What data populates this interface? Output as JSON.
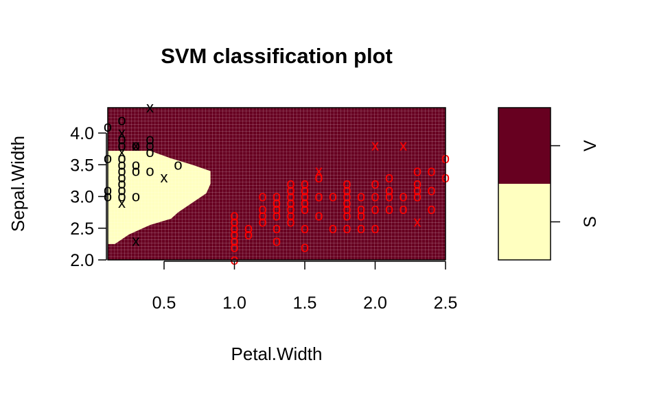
{
  "chart_data": {
    "type": "scatter",
    "title": "SVM classification plot",
    "xlabel": "Petal.Width",
    "ylabel": "Sepal.Width",
    "xlim": [
      0.1,
      2.5
    ],
    "ylim": [
      2.0,
      4.4
    ],
    "x_ticks": [
      "0.5",
      "1.0",
      "1.5",
      "2.0",
      "2.5"
    ],
    "y_ticks": [
      "2.0",
      "2.5",
      "3.0",
      "3.5",
      "4.0"
    ],
    "grid": true,
    "regions": {
      "S": {
        "color": "#ffffc0",
        "boundary": [
          [
            0.1,
            2.25
          ],
          [
            0.15,
            2.25
          ],
          [
            0.25,
            2.4
          ],
          [
            0.4,
            2.55
          ],
          [
            0.55,
            2.65
          ],
          [
            0.6,
            2.75
          ],
          [
            0.7,
            2.9
          ],
          [
            0.8,
            3.05
          ],
          [
            0.83,
            3.2
          ],
          [
            0.83,
            3.4
          ],
          [
            0.7,
            3.5
          ],
          [
            0.55,
            3.6
          ],
          [
            0.4,
            3.72
          ],
          [
            0.1,
            3.72
          ]
        ]
      },
      "V": {
        "color": "#670020"
      }
    },
    "legend": {
      "placement": "right",
      "entries": [
        "V",
        "S"
      ],
      "colors": [
        "#670020",
        "#ffffc0"
      ]
    },
    "series": [
      {
        "class": "S",
        "color": "#000000",
        "points": [
          [
            0.1,
            4.1,
            "o"
          ],
          [
            0.2,
            4.2,
            "o"
          ],
          [
            0.2,
            4.0,
            "x"
          ],
          [
            0.2,
            3.8,
            "o"
          ],
          [
            0.3,
            3.8,
            "x"
          ],
          [
            0.4,
            4.4,
            "x"
          ],
          [
            0.4,
            3.9,
            "o"
          ],
          [
            0.4,
            3.8,
            "o"
          ],
          [
            0.4,
            3.7,
            "o"
          ],
          [
            0.2,
            3.7,
            "x"
          ],
          [
            0.1,
            3.6,
            "o"
          ],
          [
            0.2,
            3.6,
            "o"
          ],
          [
            0.2,
            3.5,
            "o"
          ],
          [
            0.2,
            3.4,
            "o"
          ],
          [
            0.3,
            3.5,
            "o"
          ],
          [
            0.3,
            3.4,
            "o"
          ],
          [
            0.4,
            3.4,
            "o"
          ],
          [
            0.6,
            3.5,
            "o"
          ],
          [
            0.5,
            3.3,
            "x"
          ],
          [
            0.2,
            3.3,
            "o"
          ],
          [
            0.2,
            3.2,
            "o"
          ],
          [
            0.2,
            3.1,
            "o"
          ],
          [
            0.1,
            3.1,
            "o"
          ],
          [
            0.2,
            3.0,
            "o"
          ],
          [
            0.1,
            3.0,
            "o"
          ],
          [
            0.3,
            3.0,
            "o"
          ],
          [
            0.2,
            2.9,
            "x"
          ],
          [
            0.3,
            2.3,
            "x"
          ],
          [
            0.2,
            3.9,
            "o"
          ],
          [
            0.3,
            3.8,
            "o"
          ]
        ]
      },
      {
        "class": "V",
        "color": "#ff0000",
        "points": [
          [
            1.0,
            2.7,
            "o"
          ],
          [
            1.0,
            2.6,
            "o"
          ],
          [
            1.0,
            2.5,
            "o"
          ],
          [
            1.0,
            2.4,
            "o"
          ],
          [
            1.0,
            2.3,
            "o"
          ],
          [
            1.0,
            2.2,
            "o"
          ],
          [
            1.0,
            2.0,
            "o"
          ],
          [
            1.1,
            2.5,
            "o"
          ],
          [
            1.1,
            2.4,
            "o"
          ],
          [
            1.2,
            3.0,
            "o"
          ],
          [
            1.2,
            2.8,
            "o"
          ],
          [
            1.2,
            2.7,
            "o"
          ],
          [
            1.2,
            2.6,
            "o"
          ],
          [
            1.3,
            3.0,
            "o"
          ],
          [
            1.3,
            2.9,
            "o"
          ],
          [
            1.3,
            2.8,
            "o"
          ],
          [
            1.3,
            2.7,
            "o"
          ],
          [
            1.3,
            2.5,
            "o"
          ],
          [
            1.3,
            2.3,
            "o"
          ],
          [
            1.4,
            3.2,
            "o"
          ],
          [
            1.4,
            3.1,
            "o"
          ],
          [
            1.4,
            3.0,
            "o"
          ],
          [
            1.4,
            2.9,
            "o"
          ],
          [
            1.4,
            2.8,
            "o"
          ],
          [
            1.4,
            2.7,
            "o"
          ],
          [
            1.4,
            2.6,
            "o"
          ],
          [
            1.5,
            3.2,
            "o"
          ],
          [
            1.5,
            3.1,
            "o"
          ],
          [
            1.5,
            3.0,
            "o"
          ],
          [
            1.5,
            2.9,
            "o"
          ],
          [
            1.5,
            2.8,
            "o"
          ],
          [
            1.5,
            2.5,
            "o"
          ],
          [
            1.5,
            2.2,
            "o"
          ],
          [
            1.6,
            3.4,
            "x"
          ],
          [
            1.6,
            3.3,
            "o"
          ],
          [
            1.6,
            3.0,
            "o"
          ],
          [
            1.6,
            2.7,
            "o"
          ],
          [
            1.7,
            3.0,
            "o"
          ],
          [
            1.7,
            2.5,
            "o"
          ],
          [
            1.8,
            3.2,
            "o"
          ],
          [
            1.8,
            3.1,
            "o"
          ],
          [
            1.8,
            3.0,
            "o"
          ],
          [
            1.8,
            2.9,
            "o"
          ],
          [
            1.8,
            2.8,
            "o"
          ],
          [
            1.8,
            2.7,
            "o"
          ],
          [
            1.8,
            2.5,
            "o"
          ],
          [
            1.9,
            3.0,
            "o"
          ],
          [
            1.9,
            2.8,
            "o"
          ],
          [
            1.9,
            2.7,
            "o"
          ],
          [
            1.9,
            2.5,
            "o"
          ],
          [
            2.0,
            3.8,
            "x"
          ],
          [
            2.0,
            3.2,
            "o"
          ],
          [
            2.0,
            3.0,
            "o"
          ],
          [
            2.0,
            2.8,
            "o"
          ],
          [
            2.0,
            2.5,
            "o"
          ],
          [
            2.1,
            3.3,
            "o"
          ],
          [
            2.1,
            3.1,
            "o"
          ],
          [
            2.1,
            3.0,
            "o"
          ],
          [
            2.1,
            2.8,
            "o"
          ],
          [
            2.2,
            3.8,
            "x"
          ],
          [
            2.2,
            3.0,
            "o"
          ],
          [
            2.2,
            2.8,
            "o"
          ],
          [
            2.3,
            3.4,
            "o"
          ],
          [
            2.3,
            3.2,
            "o"
          ],
          [
            2.3,
            3.1,
            "o"
          ],
          [
            2.3,
            3.0,
            "o"
          ],
          [
            2.3,
            2.6,
            "x"
          ],
          [
            2.4,
            3.4,
            "o"
          ],
          [
            2.4,
            3.1,
            "o"
          ],
          [
            2.4,
            2.8,
            "o"
          ],
          [
            2.5,
            3.6,
            "o"
          ],
          [
            2.5,
            3.3,
            "o"
          ]
        ]
      }
    ]
  }
}
